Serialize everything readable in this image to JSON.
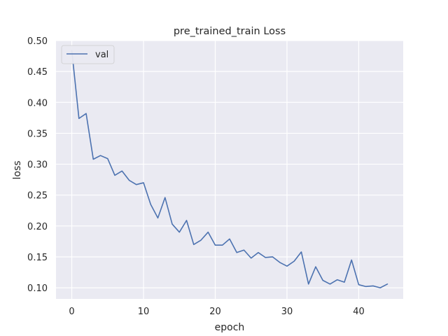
{
  "chart_data": {
    "type": "line",
    "title": "pre_trained_train Loss",
    "xlabel": "epoch",
    "ylabel": "loss",
    "xlim": [
      -2.2,
      46.2
    ],
    "ylim": [
      0.082,
      0.5
    ],
    "xticks": [
      0,
      10,
      20,
      30,
      40
    ],
    "yticks": [
      0.1,
      0.15,
      0.2,
      0.25,
      0.3,
      0.35,
      0.4,
      0.45,
      0.5
    ],
    "xtick_labels": [
      "0",
      "10",
      "20",
      "30",
      "40"
    ],
    "ytick_labels": [
      "0.10",
      "0.15",
      "0.20",
      "0.25",
      "0.30",
      "0.35",
      "0.40",
      "0.45",
      "0.50"
    ],
    "grid": true,
    "legend_position": "top-left",
    "style": {
      "background": "#eaeaf2",
      "grid_color": "#ffffff",
      "line_color": "#4c72b0"
    },
    "series": [
      {
        "name": "val",
        "x": [
          0,
          1,
          2,
          3,
          4,
          5,
          6,
          7,
          8,
          9,
          10,
          11,
          12,
          13,
          14,
          15,
          16,
          17,
          18,
          19,
          20,
          21,
          22,
          23,
          24,
          25,
          26,
          27,
          28,
          29,
          30,
          31,
          32,
          33,
          34,
          35,
          36,
          37,
          38,
          39,
          40,
          41,
          42,
          43,
          44
        ],
        "values": [
          0.484,
          0.374,
          0.382,
          0.308,
          0.314,
          0.309,
          0.282,
          0.289,
          0.274,
          0.267,
          0.27,
          0.235,
          0.213,
          0.246,
          0.203,
          0.19,
          0.209,
          0.17,
          0.177,
          0.19,
          0.169,
          0.169,
          0.179,
          0.157,
          0.161,
          0.148,
          0.157,
          0.149,
          0.15,
          0.141,
          0.135,
          0.143,
          0.158,
          0.106,
          0.134,
          0.112,
          0.106,
          0.113,
          0.109,
          0.145,
          0.105,
          0.102,
          0.103,
          0.1,
          0.106
        ]
      }
    ]
  }
}
